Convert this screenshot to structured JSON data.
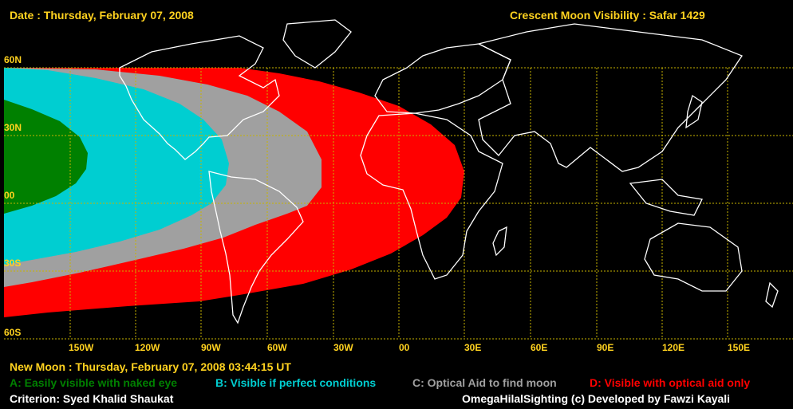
{
  "header": {
    "date": "Date : Thursday, February 07, 2008",
    "title": "Crescent Moon Visibility : Safar  1429"
  },
  "latitude_labels": [
    "60N",
    "30N",
    "00",
    "30S",
    "60S"
  ],
  "longitude_labels": [
    "150W",
    "120W",
    "90W",
    "60W",
    "30W",
    "00",
    "30E",
    "60E",
    "90E",
    "120E",
    "150E"
  ],
  "footer": {
    "new_moon": "New Moon : Thursday, February 07, 2008  03:44:15  UT",
    "legend": {
      "a": "A: Easily visible with naked eye",
      "b": "B: Visible if perfect conditions",
      "c": "C: Optical Aid to find moon",
      "d": "D: Visible with optical aid only"
    },
    "criterion": "Criterion: Syed Khalid Shaukat",
    "credit": "OmegaHilalSighting  (c)  Developed by Fawzi Kayali"
  },
  "colors": {
    "zone_a": "#008000",
    "zone_b": "#00CED1",
    "zone_c": "#A0A0A0",
    "zone_d": "#FF0000",
    "label_text": "#FFD21F",
    "grid": "#C8B400",
    "coastline": "#FFFFFF"
  },
  "icons": [
    "world-map-coastlines"
  ]
}
